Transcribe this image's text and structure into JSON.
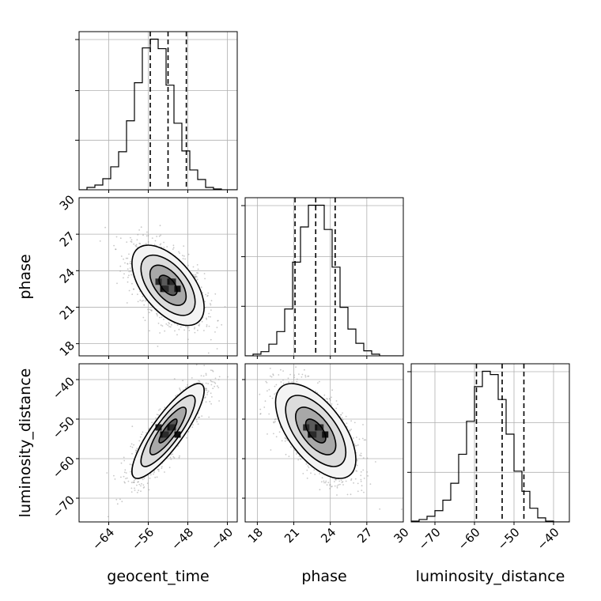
{
  "chart_data": {
    "type": "corner",
    "parameters": [
      {
        "name": "geocent_time",
        "label": "geocent_time",
        "range": [
          -70,
          -38
        ],
        "ticks": [
          -64,
          -56,
          -48,
          -40
        ],
        "tick_labels": [
          "−64",
          "−56",
          "−48",
          "−40"
        ],
        "quantiles": [
          -55.6,
          -52.0,
          -48.3
        ],
        "hist_edges_start": -70,
        "hist_bin_width": 1.6,
        "hist_counts": [
          0,
          3,
          6,
          14,
          29,
          48,
          87,
          135,
          179,
          190,
          178,
          132,
          84,
          49,
          25,
          13,
          3,
          1,
          0,
          0
        ]
      },
      {
        "name": "phase",
        "label": "phase",
        "range": [
          17,
          30
        ],
        "ticks": [
          18,
          21,
          24,
          27,
          30
        ],
        "tick_labels": [
          "18",
          "21",
          "24",
          "27",
          "30"
        ],
        "quantiles": [
          21.1,
          22.8,
          24.4
        ],
        "hist_edges_start": 17,
        "hist_bin_width": 0.65,
        "hist_counts": [
          0,
          2,
          5,
          14,
          29,
          56,
          112,
          154,
          180,
          180,
          151,
          106,
          58,
          32,
          15,
          6,
          2,
          0,
          0,
          0
        ]
      },
      {
        "name": "luminosity_distance",
        "label": "luminosity_distance",
        "range": [
          -76,
          -36
        ],
        "ticks": [
          -70,
          -60,
          -50,
          -40
        ],
        "tick_labels": [
          "−70",
          "−60",
          "−50",
          "−40"
        ],
        "quantiles": [
          -59.5,
          -53.0,
          -47.5
        ],
        "hist_edges_start": -76,
        "hist_bin_width": 2.0,
        "hist_counts": [
          1,
          3,
          7,
          14,
          27,
          48,
          84,
          125,
          168,
          187,
          183,
          152,
          109,
          63,
          38,
          17,
          5,
          1,
          0,
          0
        ]
      }
    ],
    "pairs": [
      {
        "x_param": "geocent_time",
        "y_param": "phase",
        "center": [
          -52,
          22.8
        ],
        "correlation": -0.55,
        "contour_sigmas": [
          0.5,
          1.0,
          1.5,
          2.0
        ]
      },
      {
        "x_param": "geocent_time",
        "y_param": "luminosity_distance",
        "center": [
          -52,
          -53
        ],
        "correlation": 0.85,
        "contour_sigmas": [
          0.5,
          1.0,
          1.5,
          2.0
        ]
      },
      {
        "x_param": "phase",
        "y_param": "luminosity_distance",
        "center": [
          22.8,
          -53
        ],
        "correlation": -0.6,
        "contour_sigmas": [
          0.5,
          1.0,
          1.5,
          2.0
        ]
      }
    ],
    "grid": true,
    "legend": "none"
  }
}
